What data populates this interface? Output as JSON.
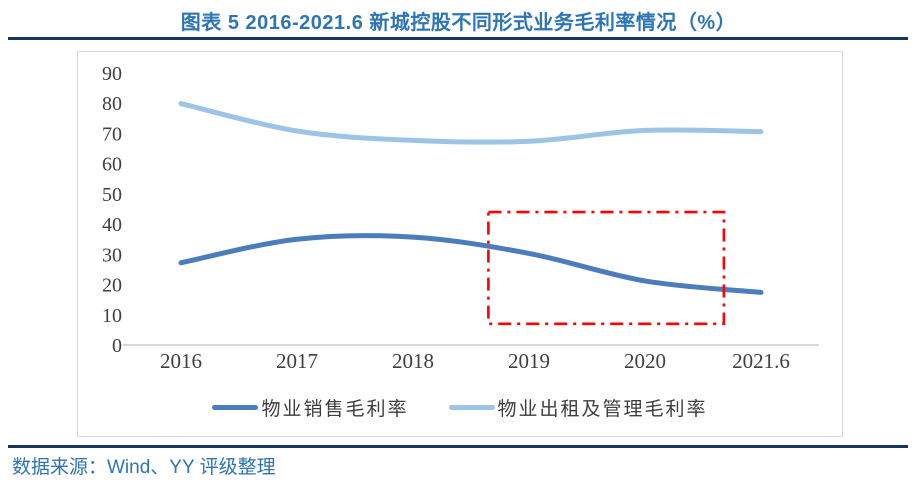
{
  "page": {
    "title": "图表 5 2016-2021.6 新城控股不同形式业务毛利率情况（%）",
    "source_note": "数据来源：Wind、YY 评级整理"
  },
  "colors": {
    "title_blue": "#2E75B6",
    "rule_navy": "#17365D",
    "source_blue": "#2E74B5",
    "sales_line_blue": "#4B7CBB",
    "rental_line_blue": "#9DC3E6",
    "annotation_red": "#FF0000",
    "axis_line_gray": "#BFBFBF",
    "tick_text_gray": "#404040",
    "chart_border_gray": "#D9D9D9"
  },
  "chart_data": {
    "type": "line",
    "line_style": "smooth",
    "categories": [
      "2016",
      "2017",
      "2018",
      "2019",
      "2020",
      "2021.6"
    ],
    "series": [
      {
        "name": "物业销售毛利率",
        "color": "#4B7CBB",
        "values": [
          27.2,
          35.0,
          35.7,
          30.3,
          21.2,
          17.4
        ]
      },
      {
        "name": "物业出租及管理毛利率",
        "color": "#9DC3E6",
        "values": [
          79.9,
          70.8,
          67.7,
          67.4,
          71.0,
          70.6
        ]
      }
    ],
    "ylim": [
      0,
      90
    ],
    "yticks": [
      0,
      10,
      20,
      30,
      40,
      50,
      60,
      70,
      80,
      90
    ],
    "grid": false,
    "legend_position": "bottom",
    "annotation_box": {
      "description": "red dash-dot highlight rectangle over declining sales margin",
      "from_category": 2.65,
      "to_category": 4.68,
      "from_value": 7,
      "to_value": 44,
      "color": "#FF0000"
    }
  }
}
